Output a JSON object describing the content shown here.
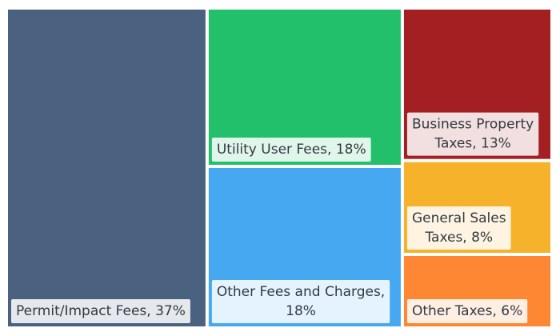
{
  "chart_data": {
    "type": "treemap",
    "items": [
      {
        "label": "Permit/Impact Fees, 37%",
        "value": 37,
        "color": "#4a6180"
      },
      {
        "label": "Utility User Fees, 18%",
        "value": 18,
        "color": "#23c06b"
      },
      {
        "label": "Other Fees and Charges, 18%",
        "value": 18,
        "color": "#45a8f0"
      },
      {
        "label": "Business Property Taxes, 13%",
        "value": 13,
        "color": "#a31f22"
      },
      {
        "label": "General Sales Taxes, 8%",
        "value": 8,
        "color": "#f5b22a"
      },
      {
        "label": "Other Taxes, 6%",
        "value": 6,
        "color": "#fd8733"
      }
    ]
  }
}
